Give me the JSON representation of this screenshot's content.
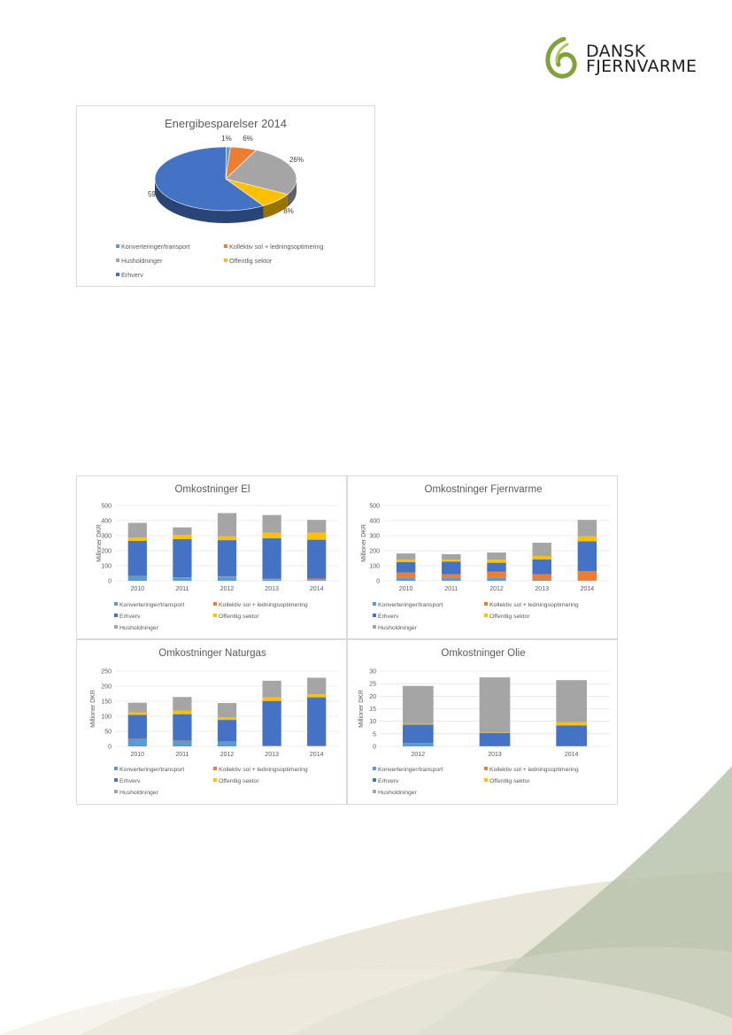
{
  "logo": {
    "line1": "DANSK",
    "line2": "FJERNVARME"
  },
  "colors": {
    "konverteringer": "#5b9bd5",
    "kollektiv": "#ed7d31",
    "husholdninger": "#a5a5a5",
    "offentlig": "#ffc000",
    "erhverv": "#4472c4",
    "grid": "#d9d9d9",
    "text": "#595959",
    "decor_green": "#aeb8a1",
    "decor_beige": "#ddd8c4"
  },
  "pie": {
    "title": "Energibesparelser 2014",
    "legend": [
      {
        "key": "konverteringer",
        "label": "Konverteringer/transport"
      },
      {
        "key": "kollektiv",
        "label": "Kollektiv sol + ledningsoptimering"
      },
      {
        "key": "husholdninger",
        "label": "Husholdninger"
      },
      {
        "key": "offentlig",
        "label": "Offentlig sektor"
      },
      {
        "key": "erhverv",
        "label": "Erhverv"
      }
    ]
  },
  "bar_legend": [
    {
      "key": "konverteringer",
      "label": "Konverteringer/transport"
    },
    {
      "key": "kollektiv",
      "label": "Kollektiv sol + ledningsoptimering"
    },
    {
      "key": "erhverv",
      "label": "Erhverv"
    },
    {
      "key": "offentlig",
      "label": "Offentlig sektor"
    },
    {
      "key": "husholdninger",
      "label": "Husholdninger"
    }
  ],
  "chart_data": [
    {
      "type": "pie",
      "title": "Energibesparelser 2014",
      "labels": [
        "Konverteringer/transport",
        "Kollektiv sol + ledningsoptimering",
        "Husholdninger",
        "Offentlig sektor",
        "Erhverv"
      ],
      "values": [
        1,
        6,
        26,
        8,
        59
      ],
      "data_labels": [
        "1%",
        "6%",
        "26%",
        "8%",
        "59%"
      ]
    },
    {
      "type": "bar",
      "stacked": true,
      "title": "Omkostninger El",
      "ylabel": "Millioner DKR",
      "categories": [
        "2010",
        "2011",
        "2012",
        "2013",
        "2014"
      ],
      "ylim": [
        0,
        500
      ],
      "yticks": [
        "0",
        "100",
        "200",
        "300",
        "400",
        "500"
      ],
      "series": [
        {
          "name": "Konverteringer/transport",
          "key": "konverteringer",
          "values": [
            30,
            20,
            28,
            10,
            5
          ]
        },
        {
          "name": "Kollektiv sol + ledningsoptimering",
          "key": "kollektiv",
          "values": [
            2,
            2,
            2,
            3,
            10
          ]
        },
        {
          "name": "Erhverv",
          "key": "erhverv",
          "values": [
            233,
            255,
            240,
            270,
            258
          ]
        },
        {
          "name": "Offentlig sektor",
          "key": "offentlig",
          "values": [
            22,
            27,
            25,
            37,
            47
          ]
        },
        {
          "name": "Husholdninger",
          "key": "husholdninger",
          "values": [
            98,
            51,
            155,
            117,
            85
          ]
        }
      ]
    },
    {
      "type": "bar",
      "stacked": true,
      "title": "Omkostninger Fjernvarme",
      "ylabel": "Millioner DKR",
      "categories": [
        "2010",
        "2011",
        "2012",
        "2013",
        "2014"
      ],
      "ylim": [
        0,
        500
      ],
      "yticks": [
        "0",
        "100",
        "200",
        "300",
        "400",
        "500"
      ],
      "series": [
        {
          "name": "Konverteringer/transport",
          "key": "konverteringer",
          "values": [
            20,
            18,
            20,
            3,
            2
          ]
        },
        {
          "name": "Kollektiv sol + ledningsoptimering",
          "key": "kollektiv",
          "values": [
            35,
            25,
            40,
            40,
            63
          ]
        },
        {
          "name": "Erhverv",
          "key": "erhverv",
          "values": [
            70,
            85,
            60,
            100,
            197
          ]
        },
        {
          "name": "Offentlig sektor",
          "key": "offentlig",
          "values": [
            15,
            12,
            20,
            22,
            33
          ]
        },
        {
          "name": "Husholdninger",
          "key": "husholdninger",
          "values": [
            42,
            37,
            48,
            88,
            110
          ]
        }
      ]
    },
    {
      "type": "bar",
      "stacked": true,
      "title": "Omkostninger Naturgas",
      "ylabel": "Millioner DKR",
      "categories": [
        "2010",
        "2011",
        "2012",
        "2013",
        "2014"
      ],
      "ylim": [
        0,
        250
      ],
      "yticks": [
        "0",
        "50",
        "100",
        "150",
        "200",
        "250"
      ],
      "series": [
        {
          "name": "Konverteringer/transport",
          "key": "konverteringer",
          "values": [
            24,
            18,
            15,
            2,
            2
          ]
        },
        {
          "name": "Kollektiv sol + ledningsoptimering",
          "key": "kollektiv",
          "values": [
            1,
            1,
            1,
            1,
            1
          ]
        },
        {
          "name": "Erhverv",
          "key": "erhverv",
          "values": [
            80,
            88,
            72,
            148,
            160
          ]
        },
        {
          "name": "Offentlig sektor",
          "key": "offentlig",
          "values": [
            8,
            12,
            8,
            12,
            10
          ]
        },
        {
          "name": "Husholdninger",
          "key": "husholdninger",
          "values": [
            32,
            45,
            48,
            55,
            55
          ]
        }
      ]
    },
    {
      "type": "bar",
      "stacked": true,
      "title": "Omkostninger Olie",
      "ylabel": "Millioner DKR",
      "categories": [
        "2012",
        "2013",
        "2014"
      ],
      "ylim": [
        0,
        30
      ],
      "yticks": [
        "0",
        "5",
        "10",
        "15",
        "20",
        "25",
        "30"
      ],
      "series": [
        {
          "name": "Konverteringer/transport",
          "key": "konverteringer",
          "values": [
            1.3,
            0.1,
            0.2
          ]
        },
        {
          "name": "Kollektiv sol + ledningsoptimering",
          "key": "kollektiv",
          "values": [
            0,
            0,
            0
          ]
        },
        {
          "name": "Erhverv",
          "key": "erhverv",
          "values": [
            7.4,
            5.3,
            8.1
          ]
        },
        {
          "name": "Offentlig sektor",
          "key": "offentlig",
          "values": [
            0.3,
            0.2,
            1.3
          ]
        },
        {
          "name": "Husholdninger",
          "key": "husholdninger",
          "values": [
            15.1,
            21.9,
            16.8
          ]
        }
      ]
    }
  ]
}
